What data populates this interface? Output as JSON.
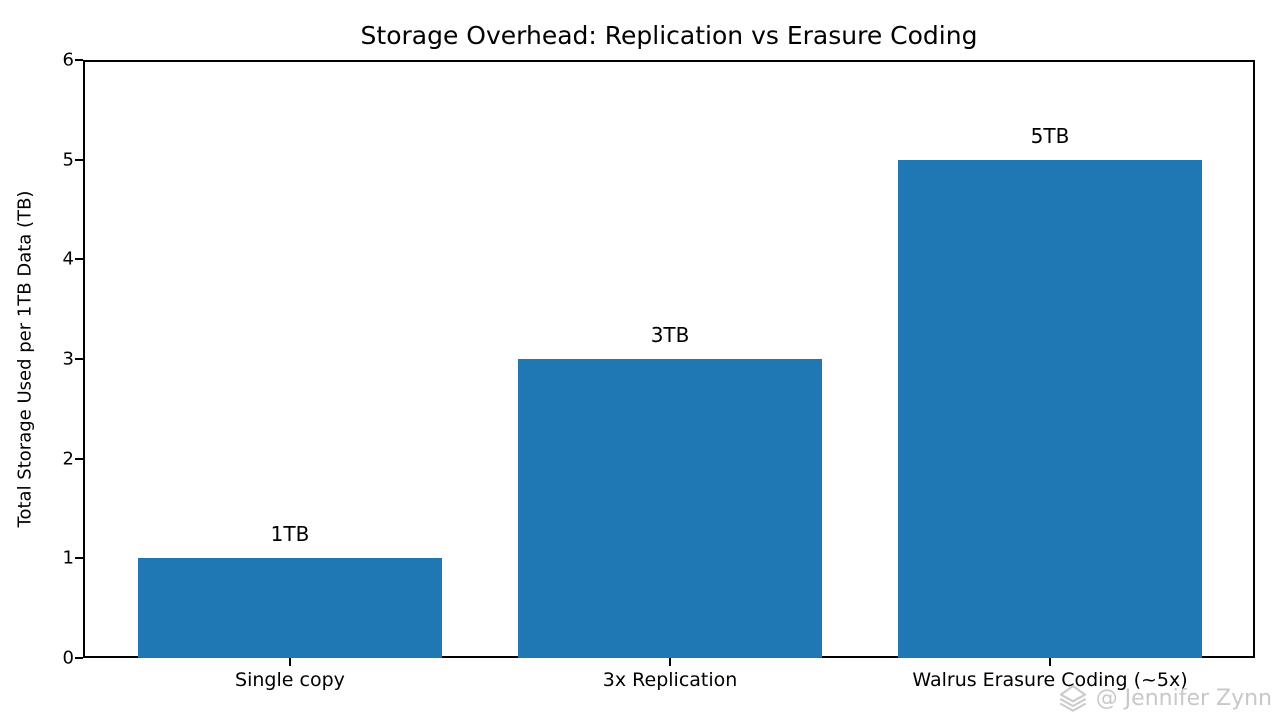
{
  "chart_data": {
    "type": "bar",
    "title": "Storage Overhead: Replication vs Erasure Coding",
    "categories": [
      "Single copy",
      "3x Replication",
      "Walrus Erasure Coding (~5x)"
    ],
    "values": [
      1,
      3,
      5
    ],
    "bar_labels": [
      "1TB",
      "3TB",
      "5TB"
    ],
    "xlabel": "",
    "ylabel": "Total Storage Used per 1TB Data (TB)",
    "ylim": [
      0,
      6
    ],
    "yticks": [
      0,
      1,
      2,
      3,
      4,
      5,
      6
    ],
    "ytick_labels": [
      "0",
      "1",
      "2",
      "3",
      "4",
      "5",
      "6"
    ],
    "bar_color": "#1f77b4",
    "grid": false,
    "legend_position": "none",
    "plot_background": "#ffffff",
    "spine_color": "#000000"
  },
  "watermark": {
    "text": "@ Jennifer Zynn",
    "icon": "gem-icon",
    "color": "#c8c8c8"
  }
}
